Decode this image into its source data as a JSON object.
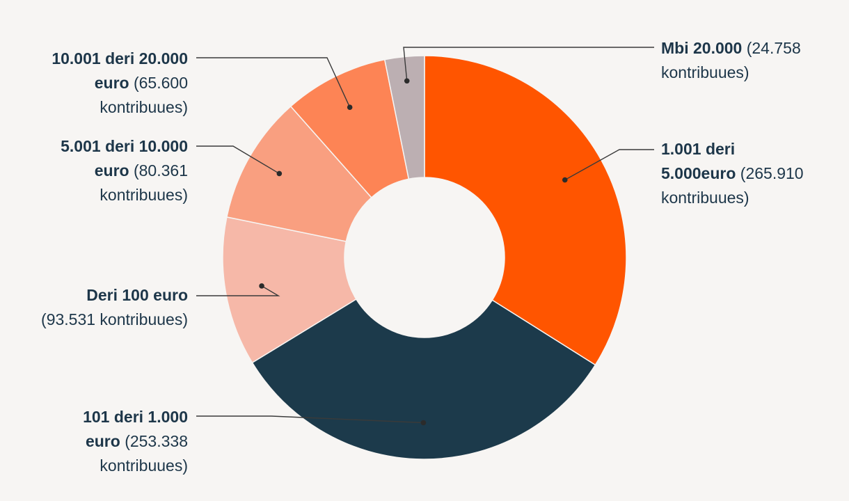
{
  "chart_data": {
    "type": "pie",
    "categories": [
      "1.001 deri 5.000euro",
      "101 deri 1.000 euro",
      "Deri 100 euro",
      "5.001 deri 10.000 euro",
      "10.001 deri 20.000 euro",
      "Mbi 20.000"
    ],
    "values": [
      265910,
      253338,
      93531,
      80361,
      65600,
      24758
    ],
    "colors": [
      "#ff5500",
      "#1c3a4b",
      "#f6b8a8",
      "#f99f80",
      "#fd8455",
      "#bcafb2"
    ],
    "labels": [
      {
        "bold": "1.001 deri",
        "bold2": "5.000euro",
        "rest": "(265.910",
        "rest2": "kontribuues)"
      },
      {
        "bold": "101 deri 1.000",
        "bold2": "euro",
        "rest": "(253.338",
        "rest2": "kontribuues)"
      },
      {
        "bold": "Deri 100 euro",
        "rest": "(93.531 kontribuues)"
      },
      {
        "bold": "5.001 deri 10.000",
        "bold2": "euro",
        "rest": "(80.361",
        "rest2": "kontribuues)"
      },
      {
        "bold": "10.001 deri 20.000",
        "bold2": "euro",
        "rest": "(65.600",
        "rest2": "kontribuues)"
      },
      {
        "bold": "Mbi 20.000",
        "rest": "(24.758",
        "rest2": "kontribuues)"
      }
    ],
    "style": "donut"
  }
}
